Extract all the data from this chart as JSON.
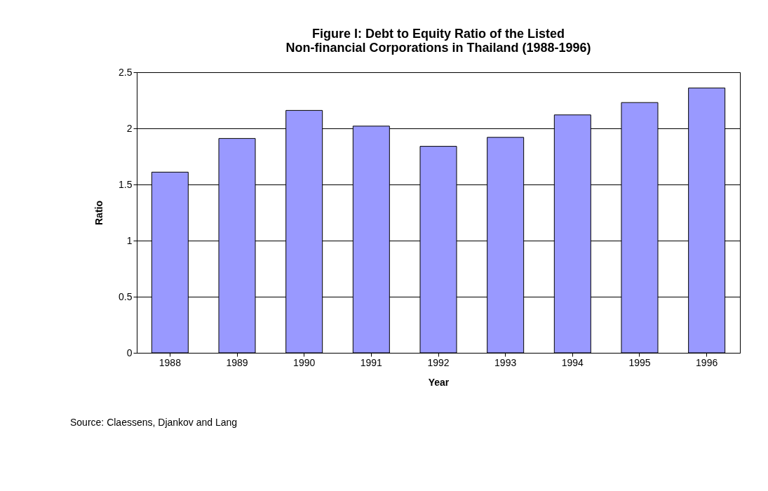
{
  "chart_data": {
    "type": "bar",
    "title": "Figure I: Debt to Equity Ratio of the  Listed Non-financial Corporations in Thailand (1988-1996)",
    "xlabel": "Year",
    "ylabel": "Ratio",
    "categories": [
      "1988",
      "1989",
      "1990",
      "1991",
      "1992",
      "1993",
      "1994",
      "1995",
      "1996"
    ],
    "series": [
      {
        "color": "#9999ff",
        "values": [
          1.61,
          1.91,
          2.16,
          2.02,
          1.84,
          1.92,
          2.12,
          2.23,
          2.36
        ]
      }
    ],
    "ylim": [
      0,
      2.5
    ],
    "yticks": [
      0,
      0.5,
      1,
      1.5,
      2,
      2.5
    ],
    "grid": "y",
    "annotations": [
      "Source: Claessens, Djankov and Lang"
    ]
  }
}
